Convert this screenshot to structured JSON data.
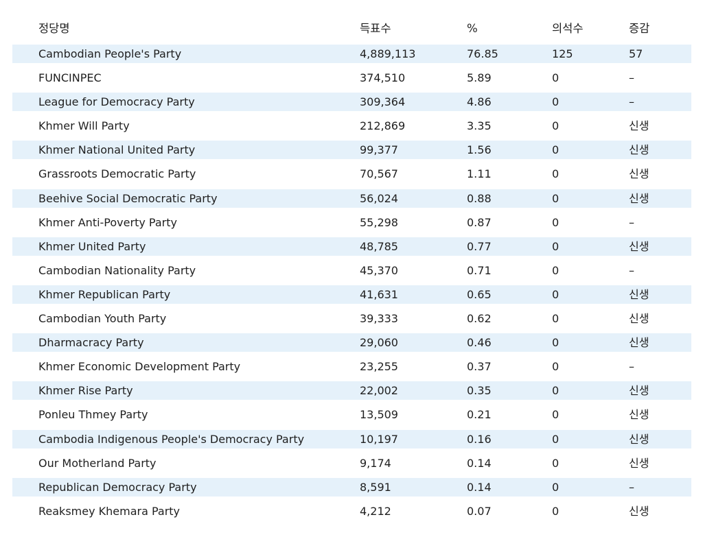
{
  "table": {
    "headers": {
      "party": "정당명",
      "votes": "득표수",
      "percent": "%",
      "seats": "의석수",
      "change": "증감"
    },
    "rows": [
      {
        "party": "Cambodian People's Party",
        "votes": "4,889,113",
        "percent": "76.85",
        "seats": "125",
        "change": "57"
      },
      {
        "party": "FUNCINPEC",
        "votes": "374,510",
        "percent": "5.89",
        "seats": "0",
        "change": "–"
      },
      {
        "party": "League for Democracy Party",
        "votes": "309,364",
        "percent": "4.86",
        "seats": "0",
        "change": "–"
      },
      {
        "party": "Khmer Will Party",
        "votes": "212,869",
        "percent": "3.35",
        "seats": "0",
        "change": "신생"
      },
      {
        "party": "Khmer National United Party",
        "votes": "99,377",
        "percent": "1.56",
        "seats": "0",
        "change": "신생"
      },
      {
        "party": "Grassroots Democratic Party",
        "votes": "70,567",
        "percent": "1.11",
        "seats": "0",
        "change": "신생"
      },
      {
        "party": "Beehive Social Democratic Party",
        "votes": "56,024",
        "percent": "0.88",
        "seats": "0",
        "change": "신생"
      },
      {
        "party": "Khmer Anti-Poverty Party",
        "votes": "55,298",
        "percent": "0.87",
        "seats": "0",
        "change": "–"
      },
      {
        "party": "Khmer United Party",
        "votes": "48,785",
        "percent": "0.77",
        "seats": "0",
        "change": "신생"
      },
      {
        "party": "Cambodian Nationality Party",
        "votes": "45,370",
        "percent": "0.71",
        "seats": "0",
        "change": "–"
      },
      {
        "party": "Khmer Republican Party",
        "votes": "41,631",
        "percent": "0.65",
        "seats": "0",
        "change": "신생"
      },
      {
        "party": "Cambodian Youth Party",
        "votes": "39,333",
        "percent": "0.62",
        "seats": "0",
        "change": "신생"
      },
      {
        "party": "Dharmacracy Party",
        "votes": "29,060",
        "percent": "0.46",
        "seats": "0",
        "change": "신생"
      },
      {
        "party": "Khmer Economic Development Party",
        "votes": "23,255",
        "percent": "0.37",
        "seats": "0",
        "change": "–"
      },
      {
        "party": "Khmer Rise Party",
        "votes": "22,002",
        "percent": "0.35",
        "seats": "0",
        "change": "신생"
      },
      {
        "party": "Ponleu Thmey Party",
        "votes": "13,509",
        "percent": "0.21",
        "seats": "0",
        "change": "신생"
      },
      {
        "party": "Cambodia Indigenous People's  Democracy Party",
        "votes": "10,197",
        "percent": "0.16",
        "seats": "0",
        "change": "신생"
      },
      {
        "party": "Our Motherland Party",
        "votes": "9,174",
        "percent": "0.14",
        "seats": "0",
        "change": "신생"
      },
      {
        "party": "Republican Democracy Party",
        "votes": "8,591",
        "percent": "0.14",
        "seats": "0",
        "change": "–"
      },
      {
        "party": "Reaksmey Khemara Party",
        "votes": "4,212",
        "percent": "0.07",
        "seats": "0",
        "change": "신생"
      }
    ]
  },
  "colors": {
    "stripe": "#e5f1fa",
    "text": "#1f1f1f"
  }
}
